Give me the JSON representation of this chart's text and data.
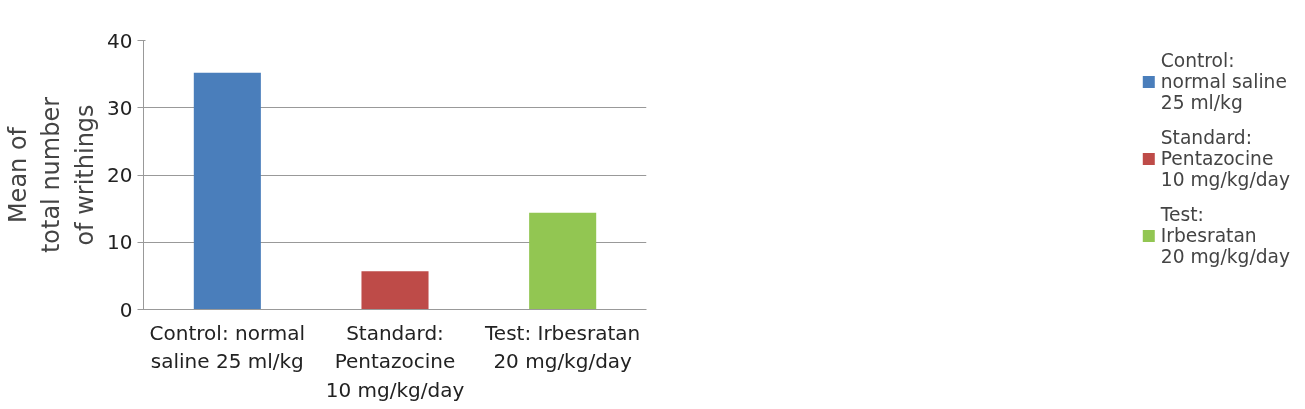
{
  "chart_data": {
    "type": "bar",
    "categories": [
      "Control: normal\nsaline 25 ml/kg",
      "Standard:\nPentazocine\n10 mg/kg/day",
      "Test: Irbesratan\n20 mg/kg/day"
    ],
    "ylabel": "Mean of\ntotal number\nof writhings",
    "series": [
      {
        "name": "Control:\nnormal saline\n25 ml/kg",
        "color": "#4a7ebb",
        "values": [
          35.2,
          null,
          null
        ]
      },
      {
        "name": "Standard:\nPentazocine\n10 mg/kg/day",
        "color": "#be4b48",
        "values": [
          null,
          5.7,
          null
        ]
      },
      {
        "name": "Test:\nIrbesratan\n20 mg/kg/day",
        "color": "#92c652",
        "values": [
          null,
          null,
          14.4
        ]
      }
    ],
    "ylim": [
      0,
      40
    ],
    "yticks": [
      0,
      10,
      20,
      30,
      40
    ],
    "grid": "y",
    "legend": "right"
  }
}
